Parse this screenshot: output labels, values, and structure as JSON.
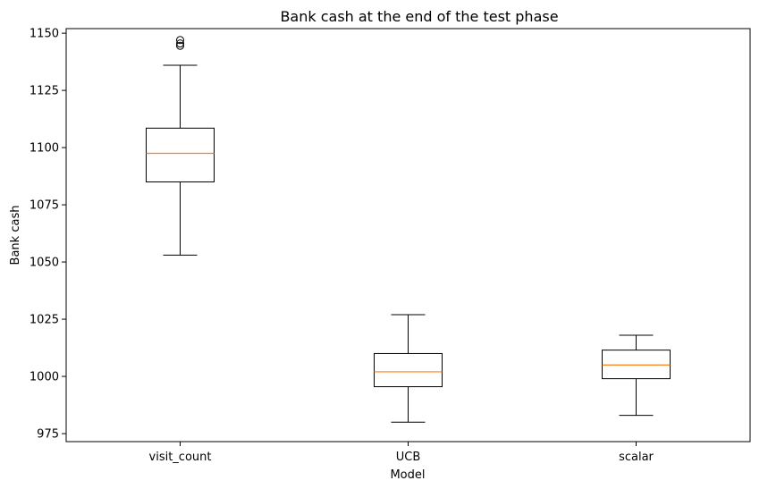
{
  "chart_data": {
    "type": "box",
    "title": "Bank cash at the end of the test phase",
    "xlabel": "Model",
    "ylabel": "Bank cash",
    "categories": [
      "visit_count",
      "UCB",
      "scalar"
    ],
    "ylim": [
      971.5,
      1152
    ],
    "yticks": [
      975,
      1000,
      1025,
      1050,
      1075,
      1100,
      1125,
      1150
    ],
    "grid": false,
    "box_color": "#000000",
    "median_color": "#ff7f0e",
    "boxes": [
      {
        "category": "visit_count",
        "whisker_low": 1053,
        "q1": 1085,
        "median": 1097.5,
        "q3": 1108.5,
        "whisker_high": 1136,
        "outliers": [
          1144.5,
          1145.5,
          1147
        ]
      },
      {
        "category": "UCB",
        "whisker_low": 980,
        "q1": 995.5,
        "median": 1002,
        "q3": 1010,
        "whisker_high": 1027,
        "outliers": []
      },
      {
        "category": "scalar",
        "whisker_low": 983,
        "q1": 999,
        "median": 1005,
        "q3": 1011.5,
        "whisker_high": 1018,
        "outliers": []
      }
    ]
  }
}
